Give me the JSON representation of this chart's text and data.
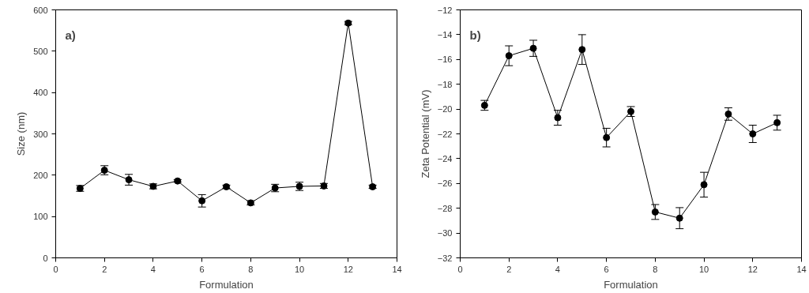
{
  "chart_data": [
    {
      "type": "line",
      "xlabel": "Formulation",
      "ylabel": "Size (nm)",
      "annotations": [
        "a)"
      ],
      "x": [
        1,
        2,
        3,
        4,
        5,
        6,
        7,
        8,
        9,
        10,
        11,
        12,
        13
      ],
      "series": [
        {
          "color": "#000000",
          "values": [
            168,
            212,
            189,
            173,
            186,
            138,
            172,
            133,
            169,
            173,
            174,
            568,
            172
          ],
          "errors": [
            7,
            11,
            13,
            6,
            3,
            15,
            4,
            5,
            9,
            10,
            6,
            4,
            4
          ]
        }
      ],
      "xlim": [
        0,
        14
      ],
      "xticks": [
        0,
        2,
        4,
        6,
        8,
        10,
        12,
        14
      ],
      "ylim": [
        0,
        600
      ],
      "yticks": [
        0,
        100,
        200,
        300,
        400,
        500,
        600
      ],
      "grid": false,
      "marker": "circle",
      "line_style": "solid"
    },
    {
      "type": "line",
      "xlabel": "Formulation",
      "ylabel": "Zeta Potential (mV)",
      "annotations": [
        "b)"
      ],
      "x": [
        1,
        2,
        3,
        4,
        5,
        6,
        7,
        8,
        9,
        10,
        11,
        12,
        13
      ],
      "series": [
        {
          "color": "#000000",
          "values": [
            -19.7,
            -15.7,
            -15.1,
            -20.7,
            -15.2,
            -22.3,
            -20.2,
            -28.3,
            -28.8,
            -26.1,
            -20.4,
            -22.0,
            -21.1
          ],
          "errors": [
            0.4,
            0.8,
            0.65,
            0.6,
            1.2,
            0.75,
            0.4,
            0.6,
            0.85,
            1.0,
            0.5,
            0.7,
            0.6
          ]
        }
      ],
      "xlim": [
        0,
        14
      ],
      "xticks": [
        0,
        2,
        4,
        6,
        8,
        10,
        12,
        14
      ],
      "ylim": [
        -32,
        -12
      ],
      "yticks": [
        -32,
        -30,
        -28,
        -26,
        -24,
        -22,
        -20,
        -18,
        -16,
        -14,
        -12
      ],
      "grid": false,
      "marker": "circle",
      "line_style": "solid"
    }
  ]
}
